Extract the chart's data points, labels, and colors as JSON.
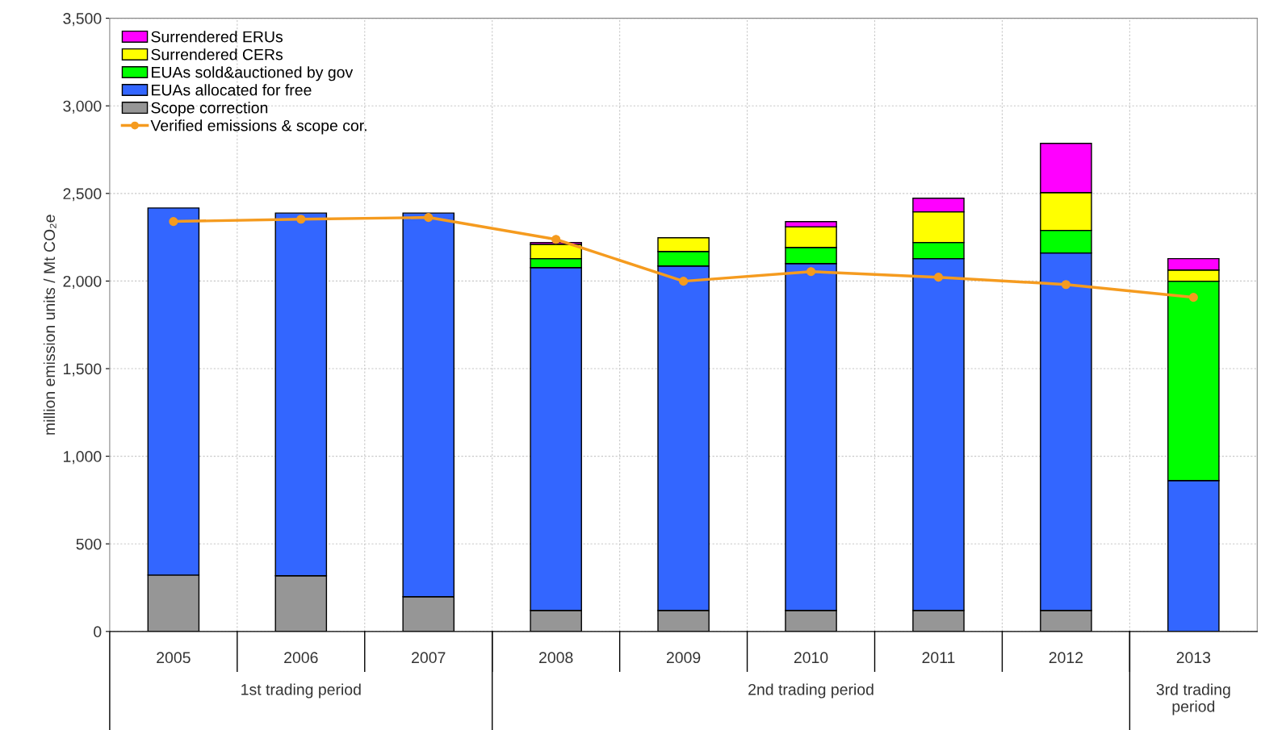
{
  "chart_data": {
    "type": "bar",
    "stacked": true,
    "ylabel": "million emission units / Mt CO₂e",
    "categories": [
      "2005",
      "2006",
      "2007",
      "2008",
      "2009",
      "2010",
      "2011",
      "2012",
      "2013"
    ],
    "series": [
      {
        "name": "Scope correction",
        "color": "#969696",
        "values": [
          322,
          318,
          198,
          120,
          120,
          120,
          120,
          120,
          0
        ]
      },
      {
        "name": "EUAs allocated for free",
        "color": "#3366ff",
        "values": [
          2095,
          2070,
          2190,
          1957,
          1966,
          1980,
          2008,
          2040,
          861
        ]
      },
      {
        "name": "EUAs sold&auctioned by gov",
        "color": "#00ff00",
        "values": [
          0,
          0,
          0,
          51,
          83,
          92,
          92,
          129,
          1138
        ]
      },
      {
        "name": "Surrendered CERs",
        "color": "#ffff00",
        "values": [
          0,
          0,
          0,
          82,
          78,
          118,
          175,
          216,
          64
        ]
      },
      {
        "name": "Surrendered ERUs",
        "color": "#ff00ff",
        "values": [
          0,
          0,
          0,
          10,
          0,
          29,
          78,
          281,
          65
        ]
      },
      {
        "name": "Verified emissions & scope cor.",
        "type": "line",
        "color": "#f59b1f",
        "marker": "circle",
        "values": [
          2340,
          2353,
          2363,
          2238,
          1999,
          2054,
          2022,
          1980,
          1907
        ]
      }
    ],
    "ylim": [
      0,
      3500
    ],
    "yticks": [
      0,
      500,
      {
        "value": 1000,
        "label": "1,000"
      },
      {
        "value": 1500,
        "label": "1,500"
      },
      {
        "value": 2000,
        "label": "2,000"
      },
      {
        "value": 2500,
        "label": "2,500"
      },
      {
        "value": 3000,
        "label": "3,000"
      },
      {
        "value": 3500,
        "label": "3,500"
      }
    ],
    "grid": true,
    "legend": "top left",
    "annotations": [
      "1st trading period",
      "2nd trading period",
      "3rd trading period"
    ]
  }
}
